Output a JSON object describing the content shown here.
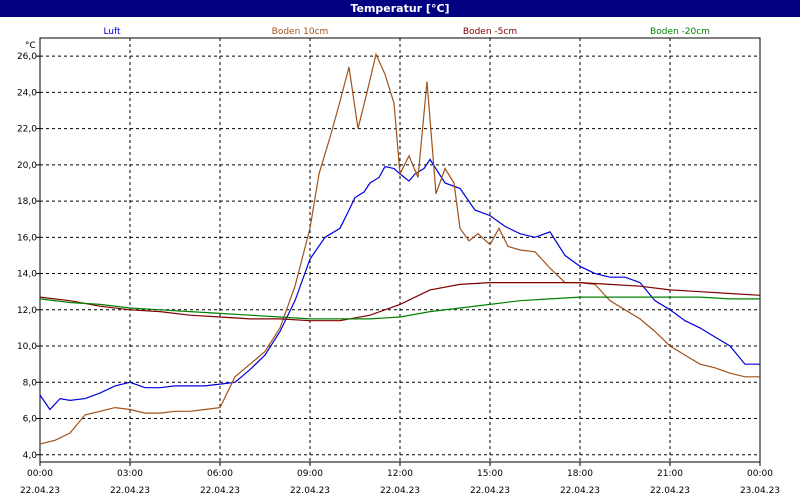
{
  "window": {
    "title": "Temperatur [°C]"
  },
  "chart_data": {
    "type": "line",
    "title": "Temperatur [°C]",
    "ylabel": "°C",
    "xlabel": "",
    "ylim": [
      3.6,
      27.0
    ],
    "xlim": [
      0,
      24
    ],
    "grid": true,
    "legend_placement": "top",
    "yticks": [
      "4,0",
      "6,0",
      "8,0",
      "10,0",
      "12,0",
      "14,0",
      "16,0",
      "18,0",
      "20,0",
      "22,0",
      "24,0",
      "26,0"
    ],
    "xticks": [
      {
        "time": "00:00",
        "date": "22.04.23"
      },
      {
        "time": "03:00",
        "date": "22.04.23"
      },
      {
        "time": "06:00",
        "date": "22.04.23"
      },
      {
        "time": "09:00",
        "date": "22.04.23"
      },
      {
        "time": "12:00",
        "date": "22.04.23"
      },
      {
        "time": "15:00",
        "date": "22.04.23"
      },
      {
        "time": "18:00",
        "date": "22.04.23"
      },
      {
        "time": "21:00",
        "date": "22.04.23"
      },
      {
        "time": "00:00",
        "date": "23.04.23"
      }
    ],
    "series": [
      {
        "name": "Luft",
        "color": "#0000dd",
        "x": [
          0,
          0.33,
          0.67,
          1,
          1.5,
          2,
          2.5,
          3,
          3.5,
          4,
          4.5,
          5,
          5.5,
          6,
          6.5,
          7,
          7.5,
          8,
          8.5,
          9,
          9.5,
          10,
          10.3,
          10.5,
          10.8,
          11,
          11.3,
          11.5,
          11.8,
          12,
          12.3,
          12.5,
          12.8,
          13,
          13.5,
          14,
          14.5,
          15,
          15.5,
          16,
          16.5,
          17,
          17.5,
          18,
          18.5,
          19,
          19.5,
          20,
          20.5,
          21,
          21.5,
          22,
          22.5,
          23,
          23.5,
          24
        ],
        "y": [
          7.3,
          6.5,
          7.1,
          7,
          7.1,
          7.4,
          7.8,
          8,
          7.7,
          7.7,
          7.8,
          7.8,
          7.8,
          7.9,
          8,
          8.7,
          9.5,
          10.8,
          12.5,
          14.8,
          16,
          16.5,
          17.5,
          18.2,
          18.5,
          19,
          19.3,
          19.9,
          19.8,
          19.5,
          19.1,
          19.5,
          19.8,
          20.3,
          19,
          18.7,
          17.5,
          17.2,
          16.6,
          16.2,
          16,
          16.3,
          15,
          14.4,
          14,
          13.8,
          13.8,
          13.5,
          12.5,
          12,
          11.4,
          11,
          10.5,
          10,
          9,
          9
        ]
      },
      {
        "name": "Boden 10cm",
        "color": "#a0521a",
        "x": [
          0,
          0.5,
          1,
          1.5,
          2,
          2.5,
          3,
          3.5,
          4,
          4.5,
          5,
          5.5,
          6,
          6.5,
          7,
          7.5,
          8,
          8.5,
          9,
          9.3,
          9.7,
          10,
          10.3,
          10.6,
          10.9,
          11.2,
          11.5,
          11.8,
          12,
          12.3,
          12.6,
          12.9,
          13.2,
          13.5,
          13.8,
          14,
          14.3,
          14.6,
          15,
          15.3,
          15.6,
          16,
          16.5,
          17,
          17.5,
          18,
          18.5,
          19,
          19.5,
          20,
          20.5,
          21,
          21.5,
          22,
          22.5,
          23,
          23.5,
          24
        ],
        "y": [
          4.6,
          4.8,
          5.2,
          6.2,
          6.4,
          6.6,
          6.5,
          6.3,
          6.3,
          6.4,
          6.4,
          6.5,
          6.6,
          8.3,
          9,
          9.7,
          11,
          13.3,
          16.5,
          19.5,
          21.7,
          23.5,
          25.4,
          22,
          24,
          26.1,
          25,
          23.4,
          19.5,
          20.5,
          19.3,
          24.6,
          18.4,
          19.8,
          19,
          16.5,
          15.8,
          16.2,
          15.6,
          16.5,
          15.5,
          15.3,
          15.2,
          14.3,
          13.5,
          13.5,
          13.4,
          12.5,
          12,
          11.5,
          10.8,
          10,
          9.5,
          9,
          8.8,
          8.5,
          8.3,
          8.3
        ]
      },
      {
        "name": "Boden -5cm",
        "color": "#800000",
        "x": [
          0,
          1,
          2,
          3,
          4,
          5,
          6,
          7,
          8,
          9,
          10,
          11,
          12,
          13,
          14,
          15,
          16,
          17,
          18,
          19,
          20,
          21,
          22,
          23,
          24
        ],
        "y": [
          12.7,
          12.5,
          12.2,
          12,
          11.9,
          11.7,
          11.6,
          11.5,
          11.5,
          11.4,
          11.4,
          11.7,
          12.3,
          13.1,
          13.4,
          13.5,
          13.5,
          13.5,
          13.5,
          13.4,
          13.3,
          13.1,
          13,
          12.9,
          12.8
        ]
      },
      {
        "name": "Boden -20cm",
        "color": "#008000",
        "x": [
          0,
          1,
          2,
          3,
          4,
          5,
          6,
          7,
          8,
          9,
          10,
          11,
          12,
          13,
          14,
          15,
          16,
          17,
          18,
          19,
          20,
          21,
          22,
          23,
          24
        ],
        "y": [
          12.6,
          12.4,
          12.3,
          12.1,
          12,
          11.9,
          11.8,
          11.7,
          11.6,
          11.5,
          11.5,
          11.5,
          11.6,
          11.9,
          12.1,
          12.3,
          12.5,
          12.6,
          12.7,
          12.7,
          12.7,
          12.7,
          12.7,
          12.6,
          12.6
        ]
      }
    ]
  }
}
